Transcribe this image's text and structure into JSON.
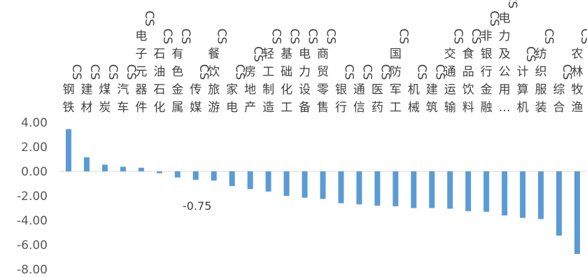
{
  "chart_data": {
    "type": "bar",
    "title": "",
    "xlabel": "",
    "ylabel": "",
    "ylim": [
      -8,
      4
    ],
    "yticks": [
      4,
      2,
      0,
      -2,
      -4,
      -6,
      -8
    ],
    "ytick_labels": [
      "4.00",
      "2.00",
      "0.00",
      "-2.00",
      "-4.00",
      "-6.00",
      "-8.00"
    ],
    "grid": false,
    "legend": "none",
    "bar_color": "#5b9bd5",
    "categories": [
      "CS钢铁",
      "CS建材",
      "CS煤炭",
      "CS汽车",
      "CS电子元器件",
      "CS石油石化",
      "CS有色金属",
      "CS传媒",
      "CS餐饮旅游",
      "CS家电",
      "CS房地产",
      "CS轻工制造",
      "CS基础化工",
      "CS电力设备",
      "CS商贸零售",
      "CS银行",
      "CS通信",
      "CS医药",
      "CS国防军工",
      "CS机械",
      "CS建筑",
      "CS交通运输",
      "CS食品饮料",
      "CS非银行金融",
      "CS电力及公用…",
      "CS计算机",
      "CS纺织服装",
      "CS综合",
      "CS农林牧渔"
    ],
    "values": [
      3.45,
      1.15,
      0.55,
      0.38,
      0.3,
      -0.15,
      -0.5,
      -0.7,
      -0.75,
      -1.2,
      -1.45,
      -1.65,
      -2.0,
      -2.15,
      -2.25,
      -2.6,
      -2.7,
      -2.8,
      -2.85,
      -3.0,
      -3.0,
      -3.05,
      -3.25,
      -3.3,
      -3.6,
      -3.8,
      -3.9,
      -5.25,
      -6.75
    ],
    "data_labels": [
      {
        "index": 8,
        "text": "-0.75"
      }
    ]
  }
}
